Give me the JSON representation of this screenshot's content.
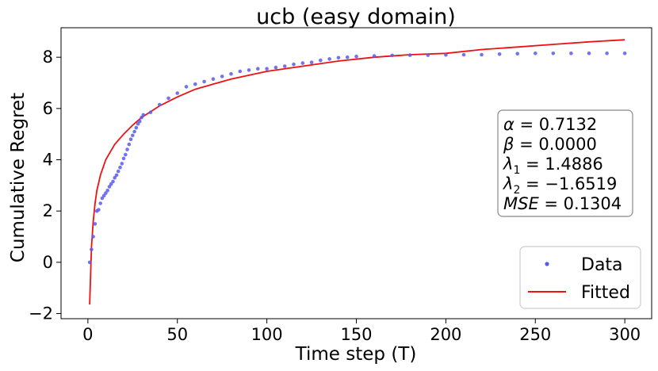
{
  "chart_data": {
    "type": "scatter",
    "title": "ucb (easy domain)",
    "xlabel": "Time step (T)",
    "ylabel": "Cumulative Regret",
    "xlim": [
      -15,
      315
    ],
    "ylim": [
      -2.2,
      9.15
    ],
    "xticks": [
      0,
      50,
      100,
      150,
      200,
      250,
      300
    ],
    "yticks": [
      -2,
      0,
      2,
      4,
      6,
      8
    ],
    "xtick_labels": [
      "0",
      "50",
      "100",
      "150",
      "200",
      "250",
      "300"
    ],
    "ytick_labels": [
      "−2",
      "0",
      "2",
      "4",
      "6",
      "8"
    ],
    "grid": false,
    "legend": {
      "position": "lower right",
      "entries": [
        {
          "label": "Data",
          "marker": "dot",
          "color": "#5a5af0"
        },
        {
          "label": "Fitted",
          "marker": "line",
          "color": "#ee1111"
        }
      ]
    },
    "annotation": {
      "position": "right",
      "lines": [
        {
          "sym": "α",
          "sub": "",
          "value": "0.7132"
        },
        {
          "sym": "β",
          "sub": "",
          "value": "0.0000"
        },
        {
          "sym": "λ",
          "sub": "1",
          "value": "1.4886"
        },
        {
          "sym": "λ",
          "sub": "2",
          "value": "−1.6519"
        },
        {
          "sym": "MSE",
          "sub": "",
          "value": "0.1304"
        }
      ]
    },
    "series": [
      {
        "name": "Data",
        "style": "scatter",
        "color": "#5a5af0",
        "points": [
          [
            1,
            0
          ],
          [
            2,
            0.5
          ],
          [
            3,
            1.0
          ],
          [
            4,
            1.5
          ],
          [
            5,
            2.0
          ],
          [
            6,
            2.05
          ],
          [
            7,
            2.3
          ],
          [
            8,
            2.5
          ],
          [
            9,
            2.6
          ],
          [
            10,
            2.7
          ],
          [
            11,
            2.8
          ],
          [
            12,
            2.95
          ],
          [
            13,
            3.05
          ],
          [
            14,
            3.15
          ],
          [
            15,
            3.3
          ],
          [
            16,
            3.4
          ],
          [
            17,
            3.55
          ],
          [
            18,
            3.7
          ],
          [
            19,
            3.85
          ],
          [
            20,
            4.05
          ],
          [
            21,
            4.2
          ],
          [
            22,
            4.4
          ],
          [
            23,
            4.6
          ],
          [
            24,
            4.8
          ],
          [
            25,
            4.95
          ],
          [
            26,
            5.1
          ],
          [
            27,
            5.25
          ],
          [
            28,
            5.4
          ],
          [
            29,
            5.5
          ],
          [
            30,
            5.65
          ],
          [
            31,
            5.75
          ],
          [
            35,
            5.85
          ],
          [
            40,
            6.15
          ],
          [
            45,
            6.4
          ],
          [
            50,
            6.6
          ],
          [
            55,
            6.85
          ],
          [
            60,
            6.95
          ],
          [
            65,
            7.05
          ],
          [
            70,
            7.15
          ],
          [
            75,
            7.25
          ],
          [
            80,
            7.35
          ],
          [
            85,
            7.45
          ],
          [
            90,
            7.5
          ],
          [
            95,
            7.55
          ],
          [
            100,
            7.55
          ],
          [
            105,
            7.6
          ],
          [
            110,
            7.65
          ],
          [
            115,
            7.72
          ],
          [
            120,
            7.77
          ],
          [
            125,
            7.8
          ],
          [
            130,
            7.88
          ],
          [
            135,
            7.93
          ],
          [
            140,
            7.98
          ],
          [
            145,
            8.0
          ],
          [
            150,
            8.03
          ],
          [
            160,
            8.05
          ],
          [
            170,
            8.07
          ],
          [
            180,
            8.08
          ],
          [
            190,
            8.08
          ],
          [
            200,
            8.09
          ],
          [
            210,
            8.1
          ],
          [
            220,
            8.1
          ],
          [
            230,
            8.12
          ],
          [
            240,
            8.14
          ],
          [
            250,
            8.15
          ],
          [
            260,
            8.15
          ],
          [
            270,
            8.15
          ],
          [
            280,
            8.15
          ],
          [
            290,
            8.15
          ],
          [
            300,
            8.15
          ]
        ]
      },
      {
        "name": "Fitted",
        "style": "line",
        "color": "#ee1111",
        "points": [
          [
            1,
            -1.65
          ],
          [
            2,
            0.6
          ],
          [
            3,
            1.6
          ],
          [
            4,
            2.3
          ],
          [
            5,
            2.8
          ],
          [
            7,
            3.4
          ],
          [
            10,
            4.0
          ],
          [
            15,
            4.6
          ],
          [
            20,
            5.0
          ],
          [
            25,
            5.35
          ],
          [
            30,
            5.65
          ],
          [
            40,
            6.1
          ],
          [
            50,
            6.45
          ],
          [
            60,
            6.75
          ],
          [
            70,
            6.95
          ],
          [
            80,
            7.15
          ],
          [
            100,
            7.45
          ],
          [
            120,
            7.65
          ],
          [
            140,
            7.85
          ],
          [
            160,
            8.0
          ],
          [
            180,
            8.1
          ],
          [
            200,
            8.15
          ],
          [
            220,
            8.3
          ],
          [
            240,
            8.4
          ],
          [
            260,
            8.5
          ],
          [
            280,
            8.6
          ],
          [
            300,
            8.68
          ]
        ]
      }
    ]
  }
}
